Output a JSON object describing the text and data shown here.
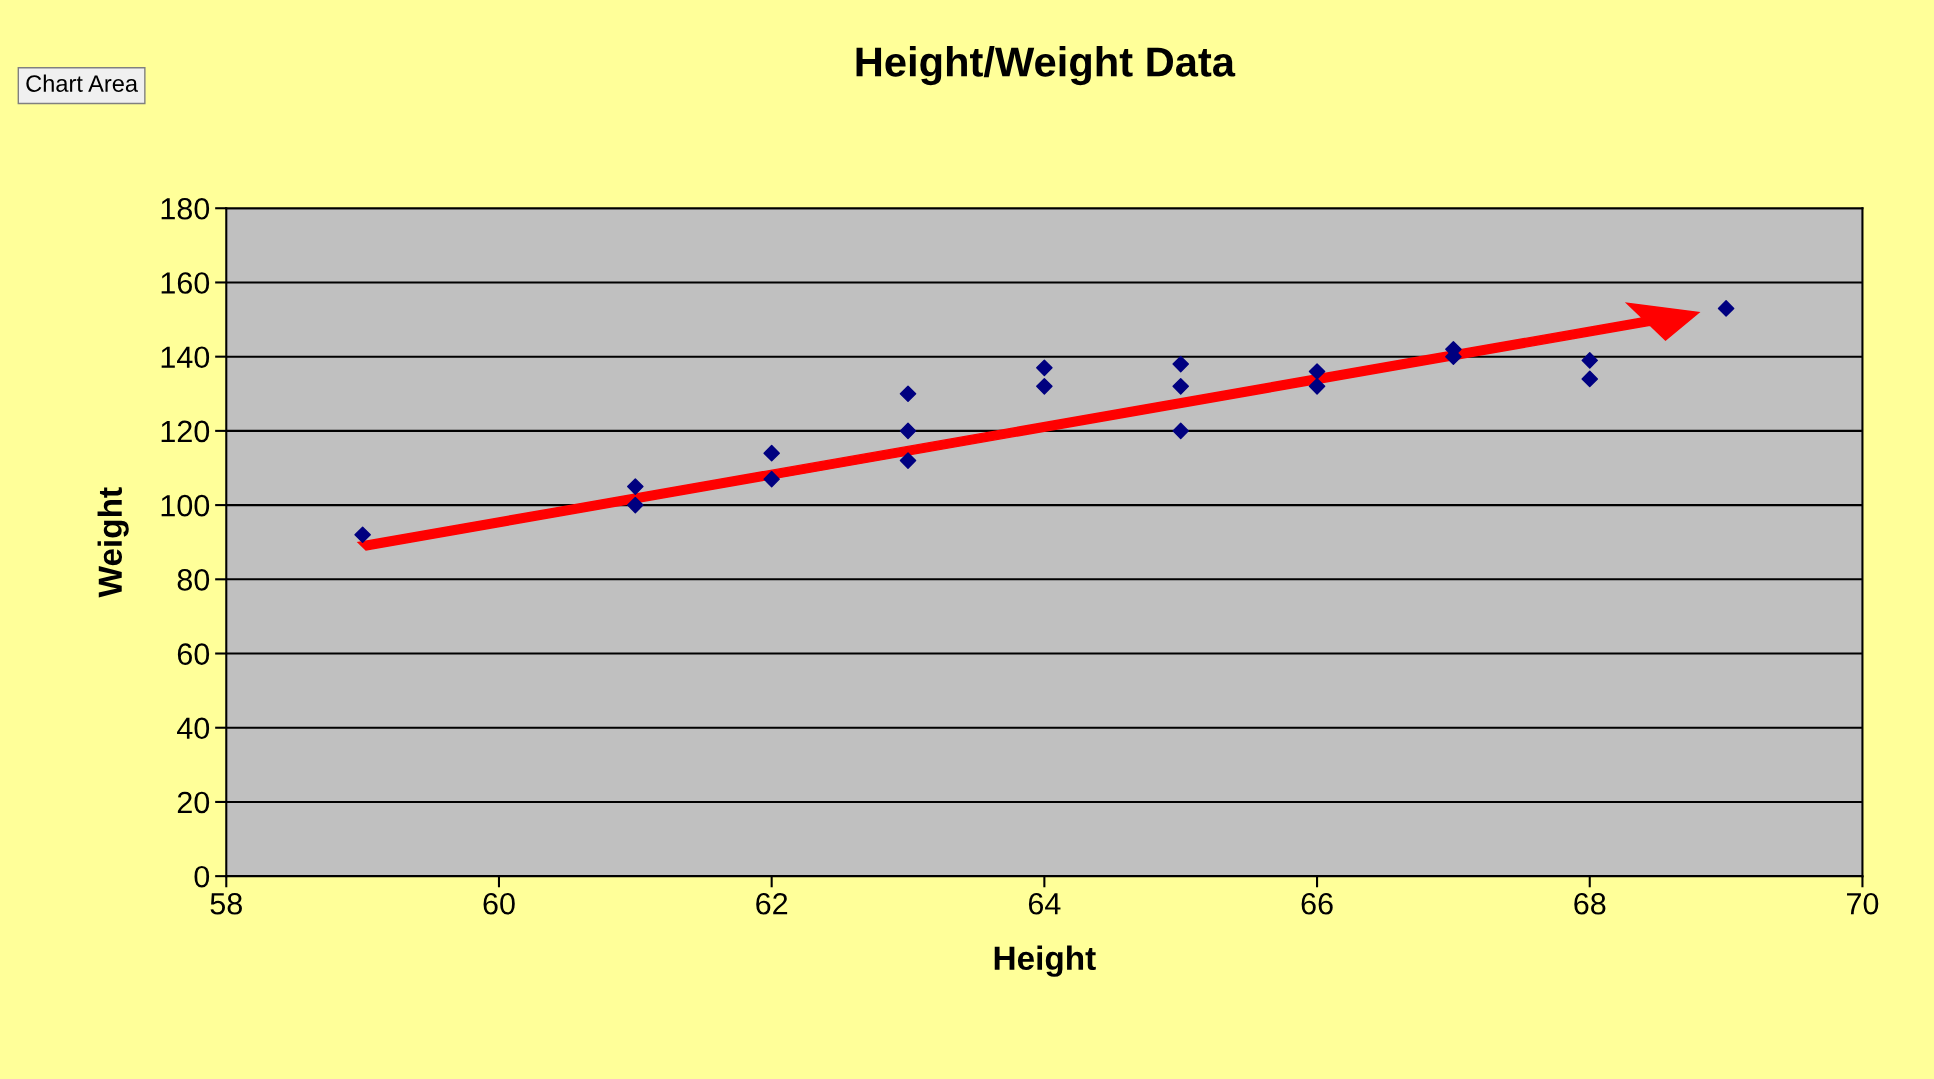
{
  "chart_data": {
    "type": "scatter",
    "title": "Height/Weight Data",
    "xlabel": "Height",
    "ylabel": "Weight",
    "annotations": [
      "Chart Area"
    ],
    "series": [
      {
        "color": "#000080",
        "x": [
          59,
          61,
          61,
          62,
          62,
          63,
          63,
          63,
          64,
          64,
          65,
          65,
          65,
          66,
          66,
          67,
          67,
          68,
          68,
          69
        ],
        "values": [
          92,
          105,
          100,
          114,
          107,
          130,
          120,
          112,
          137,
          132,
          138,
          132,
          120,
          136,
          132,
          142,
          140,
          139,
          134,
          153
        ]
      }
    ],
    "marker": "diamond",
    "xlim": [
      58,
      70
    ],
    "xticks": [
      58,
      60,
      62,
      64,
      66,
      68,
      70
    ],
    "ylim": [
      0,
      180
    ],
    "yticks": [
      0,
      20,
      40,
      60,
      80,
      100,
      120,
      140,
      160,
      180
    ],
    "grid": "y"
  }
}
